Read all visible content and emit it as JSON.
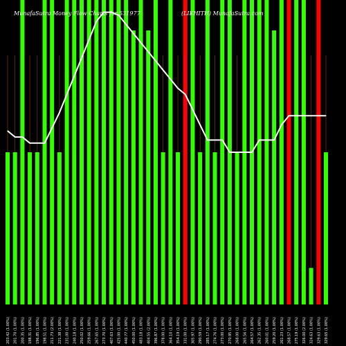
{
  "chart_data": {
    "type": "bar",
    "title_left": "MunafaSutra Money Flow Charts for 531977",
    "title_right": "(LIKHITH) MunafaSutra.com",
    "colors": {
      "background": "#000000",
      "up_bar": "#33ff00",
      "down_bar": "#ff0000",
      "line": "#ffffff",
      "grid": "#8b4513",
      "tick_text": "#ffffff"
    },
    "ylim": [
      0,
      100
    ],
    "categories": [
      "203.42 (1.00%)",
      "201.70 (1.00%)",
      "200.35 (1.00%)",
      "198.31 (1.00%)",
      "196.85 (1.00%)",
      "198.51 (1.00%)",
      "211.73 (2.00%)",
      "221.38 (1.00%)",
      "231.00 (1.00%)",
      "240.18 (1.00%)",
      "250.02 (1.00%)",
      "259.66 (1.00%)",
      "267.65 (1.00%)",
      "273.70 (1.00%)",
      "407.63 (1.00%)",
      "425.00 (1.00%)",
      "440.77 (1.00%)",
      "450.00 (1.00%)",
      "483.18 (1.00%)",
      "404.55 (2.00%)",
      "396.87 (1.00%)",
      "378.00 (1.00%)",
      "364.10 (1.00%)",
      "354.19 (1.00%)",
      "331.00 (1.00%)",
      "305.97 (1.00%)",
      "290.59 (1.00%)",
      "285.17 (1.00%)",
      "274.76 (1.00%)",
      "273.00 (1.00%)",
      "270.95 (1.00%)",
      "268.00 (1.00%)",
      "265.56 (1.00%)",
      "264.57 (1.00%)",
      "262.35 (1.00%)",
      "260.01 (1.00%)",
      "259.20 (1.00%)",
      "261.23 (1.00%)",
      "268.57 (1.00%)",
      "275.19 (1.00%)",
      "326.00 (2.00%)",
      "324.63 (1.00%)",
      "329.63 (1.00%)",
      "329.65 (1.00%)"
    ],
    "bar_values": [
      50,
      50,
      100,
      50,
      50,
      100,
      100,
      50,
      100,
      100,
      100,
      100,
      100,
      100,
      100,
      100,
      100,
      90,
      100,
      90,
      100,
      50,
      100,
      50,
      100,
      100,
      50,
      100,
      50,
      100,
      100,
      50,
      100,
      100,
      100,
      100,
      90,
      100,
      100,
      100,
      100,
      12,
      100,
      50
    ],
    "bar_colors": [
      "up",
      "up",
      "up",
      "up",
      "up",
      "up",
      "up",
      "up",
      "up",
      "up",
      "up",
      "up",
      "up",
      "up",
      "up",
      "up",
      "up",
      "up",
      "up",
      "up",
      "up",
      "up",
      "up",
      "up",
      "down",
      "up",
      "up",
      "up",
      "up",
      "up",
      "up",
      "up",
      "up",
      "up",
      "up",
      "up",
      "up",
      "up",
      "down",
      "up",
      "up",
      "up",
      "down",
      "up"
    ],
    "series": [
      {
        "values": [
          57,
          55,
          55,
          53,
          53,
          53,
          58,
          63,
          69,
          75,
          81,
          87,
          93,
          96,
          96,
          95,
          92,
          89,
          86,
          83,
          80,
          77,
          74,
          71,
          69,
          64,
          59,
          54,
          54,
          54,
          50,
          50,
          50,
          50,
          54,
          54,
          54,
          59,
          62,
          62,
          62,
          62,
          62,
          62
        ]
      }
    ]
  }
}
